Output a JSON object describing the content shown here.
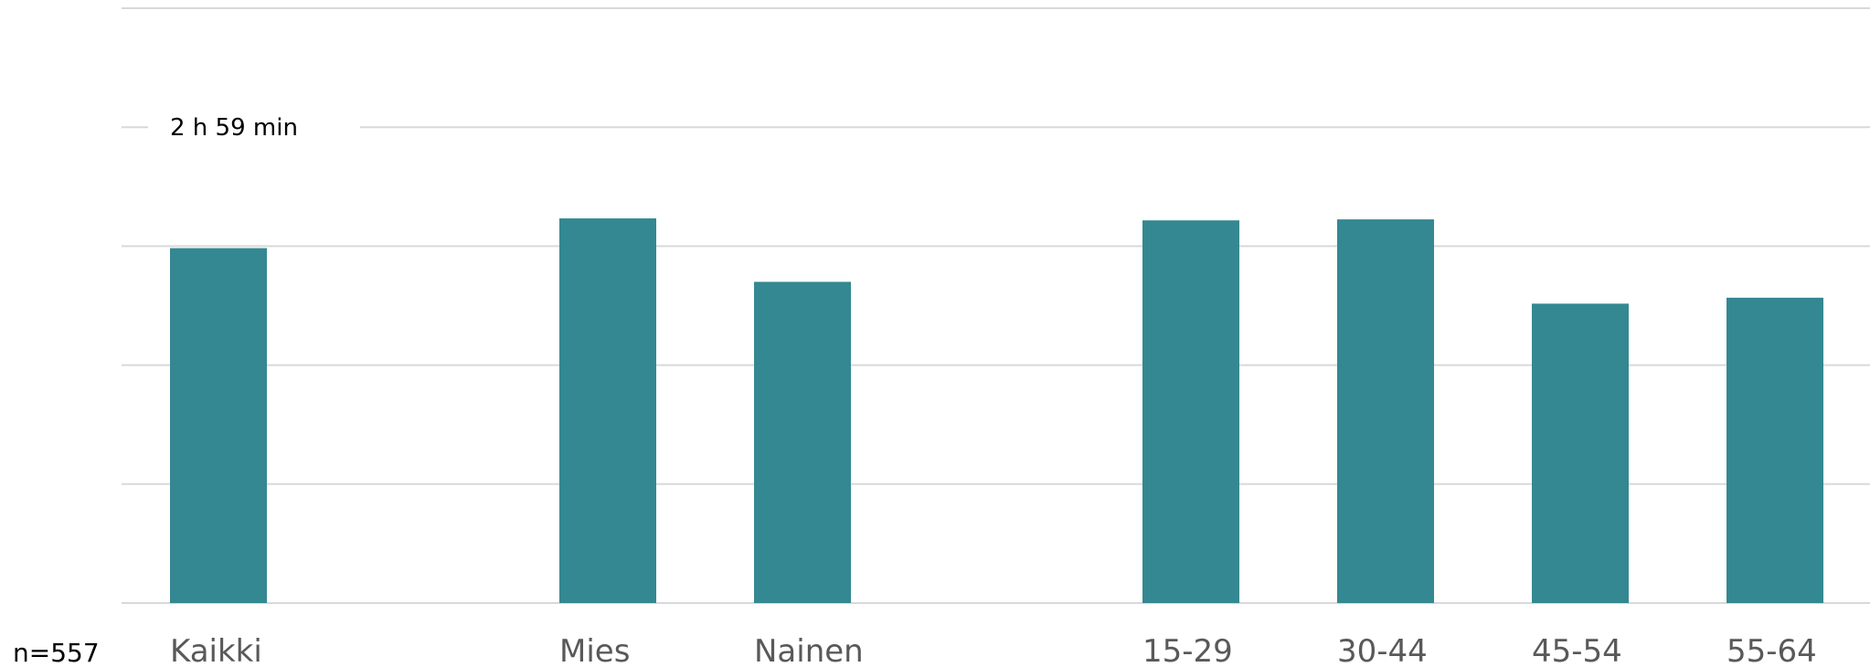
{
  "chart_data": {
    "type": "bar",
    "categories": [
      "Kaikki",
      "Mies",
      "Nainen",
      "15-29",
      "30-44",
      "45-54",
      "55-64"
    ],
    "values": [
      179,
      194,
      162,
      193,
      193.5,
      151,
      154
    ],
    "unit": "min",
    "ylim": [
      0,
      300
    ],
    "grid": true,
    "bar_color": "#348892",
    "data_labels": [
      {
        "category": "Kaikki",
        "text": "2 h 59 min"
      }
    ],
    "sample_label": "n=557"
  }
}
